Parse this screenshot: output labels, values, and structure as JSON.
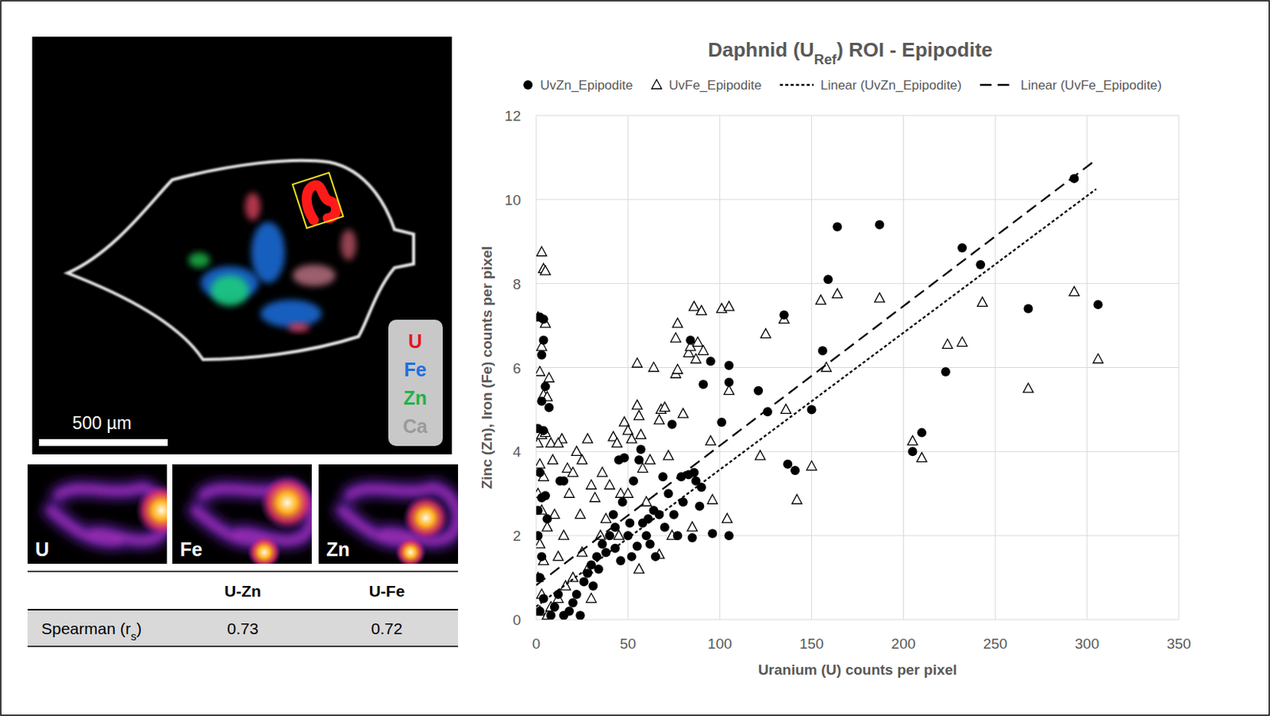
{
  "chart_data": {
    "type": "scatter",
    "title": "Daphnid (URef) ROI - Epipodite",
    "title_subscript": "Ref",
    "x_label": "Uranium (U) counts per pixel",
    "y_label": "Zinc (Zn), Iron (Fe) counts per pixel",
    "xlim": [
      0,
      350
    ],
    "xticks": [
      0,
      50,
      100,
      150,
      200,
      250,
      300,
      350
    ],
    "ylim": [
      0,
      12
    ],
    "yticks": [
      0,
      2,
      4,
      6,
      8,
      10,
      12
    ],
    "grid": true,
    "legend": "top",
    "series": [
      {
        "name": "UvZn_Epipodite",
        "type": "scatter",
        "marker": "circle",
        "color": "#000000",
        "x": [
          293,
          164,
          187,
          159,
          232,
          242,
          306,
          268,
          135,
          156,
          223,
          210,
          205,
          150,
          126,
          121,
          105,
          105,
          101,
          91,
          95,
          84,
          74,
          137,
          141,
          105,
          96,
          85,
          77,
          89,
          90,
          87,
          83,
          86,
          79,
          69,
          61,
          64,
          67,
          57,
          56,
          53,
          45,
          48,
          47,
          51,
          43,
          40,
          36,
          33,
          30,
          26,
          22,
          20,
          18,
          15,
          24,
          28,
          38,
          43,
          50,
          55,
          60,
          65,
          70,
          75,
          80,
          62,
          52,
          46,
          34,
          31,
          2,
          4,
          4,
          3,
          5,
          7,
          3,
          1,
          4,
          2,
          3,
          5,
          1,
          6,
          1,
          3,
          2,
          4,
          2,
          15,
          13,
          10,
          12,
          8,
          58,
          72,
          42
        ],
        "values": [
          10.5,
          9.35,
          9.4,
          8.1,
          8.85,
          8.45,
          7.5,
          7.4,
          7.25,
          6.4,
          5.9,
          4.45,
          4.0,
          5.0,
          4.95,
          5.45,
          6.05,
          5.65,
          4.7,
          5.6,
          6.15,
          6.65,
          4.65,
          3.7,
          3.55,
          2.0,
          2.05,
          1.95,
          2.0,
          2.7,
          3.15,
          3.3,
          3.45,
          3.5,
          3.4,
          3.4,
          2.4,
          2.6,
          2.5,
          4.05,
          3.8,
          3.3,
          3.8,
          3.85,
          2.8,
          2.3,
          2.2,
          2.0,
          1.8,
          1.5,
          1.3,
          0.9,
          0.6,
          0.4,
          0.2,
          0.1,
          0.1,
          1.1,
          1.6,
          1.7,
          2.0,
          1.75,
          2.0,
          1.5,
          2.2,
          2.5,
          2.8,
          1.8,
          1.5,
          1.4,
          1.2,
          0.8,
          7.2,
          7.15,
          6.65,
          6.3,
          5.55,
          5.05,
          5.2,
          4.55,
          4.5,
          3.5,
          2.9,
          2.95,
          2.6,
          2.4,
          2.0,
          1.5,
          1.0,
          0.5,
          0.2,
          3.3,
          3.3,
          0.3,
          0.6,
          0.1,
          2.3,
          3.0,
          2.5
        ]
      },
      {
        "name": "UvFe_Epipodite",
        "type": "scatter",
        "marker": "triangle",
        "color": "#000000",
        "x": [
          3,
          4,
          5,
          1,
          5,
          3,
          2,
          7,
          4,
          6,
          1,
          3,
          5,
          2,
          4,
          1,
          3,
          6,
          2,
          4,
          1,
          3,
          2,
          6,
          8,
          9,
          14,
          12,
          10,
          15,
          12,
          18,
          17,
          20,
          22,
          25,
          28,
          24,
          30,
          32,
          36,
          40,
          42,
          44,
          46,
          48,
          50,
          52,
          55,
          56,
          55,
          57,
          58,
          62,
          64,
          68,
          67,
          70,
          72,
          76,
          77,
          76,
          77,
          80,
          83,
          84,
          86,
          88,
          90,
          87,
          91,
          95,
          96,
          101,
          105,
          105,
          104,
          125,
          122,
          135,
          142,
          136,
          150,
          155,
          158,
          164,
          187,
          205,
          210,
          224,
          232,
          243,
          268,
          293,
          306,
          85,
          67,
          56,
          74,
          60,
          45,
          35,
          28,
          20,
          16,
          12,
          8,
          25,
          38,
          30,
          50
        ],
        "values": [
          8.75,
          8.35,
          8.3,
          7.2,
          7.05,
          6.5,
          5.9,
          5.75,
          5.35,
          5.3,
          4.2,
          4.4,
          4.45,
          3.7,
          3.4,
          3.0,
          2.6,
          2.2,
          1.8,
          1.4,
          1.0,
          0.6,
          0.2,
          0.1,
          4.2,
          3.8,
          4.3,
          4.2,
          2.5,
          2.0,
          1.5,
          3.0,
          3.6,
          3.5,
          4.0,
          3.8,
          4.3,
          2.5,
          3.2,
          2.9,
          3.5,
          3.2,
          4.35,
          4.2,
          3.0,
          4.7,
          4.5,
          4.3,
          5.1,
          4.85,
          6.1,
          4.4,
          3.6,
          3.8,
          6.0,
          5.0,
          4.75,
          5.05,
          3.9,
          5.85,
          5.95,
          6.7,
          7.05,
          4.9,
          6.35,
          6.5,
          7.45,
          6.6,
          7.35,
          6.2,
          6.4,
          4.25,
          2.85,
          7.4,
          7.45,
          5.45,
          2.4,
          6.8,
          3.9,
          7.15,
          2.85,
          5.0,
          3.65,
          7.6,
          6.0,
          7.75,
          7.65,
          4.25,
          3.85,
          6.55,
          6.6,
          7.55,
          5.5,
          7.8,
          6.2,
          2.2,
          1.55,
          1.2,
          2.0,
          2.8,
          2.0,
          2.0,
          1.2,
          1.0,
          0.8,
          0.5,
          0.3,
          1.6,
          2.4,
          0.5,
          3.0
        ]
      },
      {
        "name": "Linear (UvZn_Epipodite)",
        "type": "line",
        "line_style": "dotted",
        "color": "#000000",
        "x": [
          0,
          305
        ],
        "values": [
          0.31,
          10.25
        ]
      },
      {
        "name": "Linear (UvFe_Epipodite)",
        "type": "line",
        "line_style": "dashed",
        "color": "#000000",
        "x": [
          0,
          305
        ],
        "values": [
          0.82,
          10.95
        ]
      }
    ]
  },
  "image_panel": {
    "scale_bar": "500 µm",
    "legend": [
      {
        "label": "U",
        "color": "#e8141c"
      },
      {
        "label": "Fe",
        "color": "#1e6fe0"
      },
      {
        "label": "Zn",
        "color": "#1fb34a"
      },
      {
        "label": "Ca",
        "color": "#9a9a9a"
      }
    ],
    "maps": [
      "U",
      "Fe",
      "Zn"
    ]
  },
  "table": {
    "columns": [
      "U-Zn",
      "U-Fe"
    ],
    "rows": [
      {
        "label": "Spearman (rs)",
        "label_subscript": "s",
        "values": [
          0.73,
          0.72
        ]
      }
    ]
  }
}
